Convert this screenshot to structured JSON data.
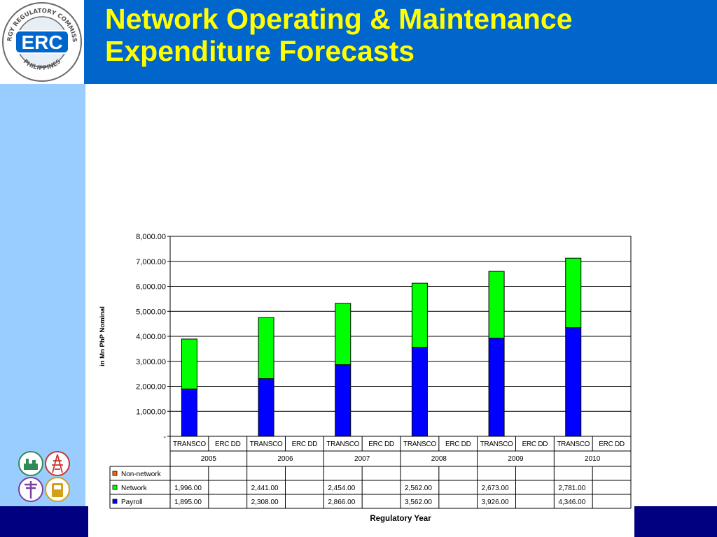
{
  "slide": {
    "title_line1": "Network Operating & Maintenance",
    "title_line2": "Expenditure Forecasts"
  },
  "logo": {
    "text": "ERC",
    "ring_top": "ENERGY REGULATORY COMMISSION",
    "ring_bottom": "PHILIPPINES"
  },
  "colors": {
    "header_bar": "#0066cc",
    "title_text": "#ffff00",
    "side_strip": "#99ccff",
    "footer_bar": "#000080",
    "payroll": "#0000ff",
    "network": "#00ff00",
    "non_network": "#ff6600"
  },
  "icons": [
    "substation-icon",
    "transmission-tower-icon",
    "utility-pole-icon",
    "meter-icon"
  ],
  "chart_data": {
    "type": "bar",
    "stacked": true,
    "ylabel": "in Mn PhP Nominal",
    "xlabel": "Regulatory Year",
    "ylim": [
      0,
      8000
    ],
    "yticks": [
      "-",
      "1,000.00",
      "2,000.00",
      "3,000.00",
      "4,000.00",
      "5,000.00",
      "6,000.00",
      "7,000.00",
      "8,000.00"
    ],
    "years": [
      "2005",
      "2006",
      "2007",
      "2008",
      "2009",
      "2010"
    ],
    "subcategories": [
      "TRANSCO",
      "ERC DD"
    ],
    "series": [
      {
        "name": "Non-network",
        "color": "#ff6600",
        "values": [
          null,
          null,
          null,
          null,
          null,
          null
        ],
        "labels": [
          "",
          "",
          "",
          "",
          "",
          ""
        ]
      },
      {
        "name": "Network",
        "color": "#00ff00",
        "values": [
          1996,
          2441,
          2454,
          2562,
          2673,
          2781
        ],
        "labels": [
          "1,996.00",
          "2,441.00",
          "2,454.00",
          "2,562.00",
          "2,673.00",
          "2,781.00"
        ]
      },
      {
        "name": "Payroll",
        "color": "#0000ff",
        "values": [
          1895,
          2308,
          2866,
          3562,
          3926,
          4346
        ],
        "labels": [
          "1,895.00",
          "2,308.00",
          "2,866.00",
          "3,562.00",
          "3,926.00",
          "4,346.00"
        ]
      }
    ],
    "grid": true,
    "legend": "table-below"
  }
}
